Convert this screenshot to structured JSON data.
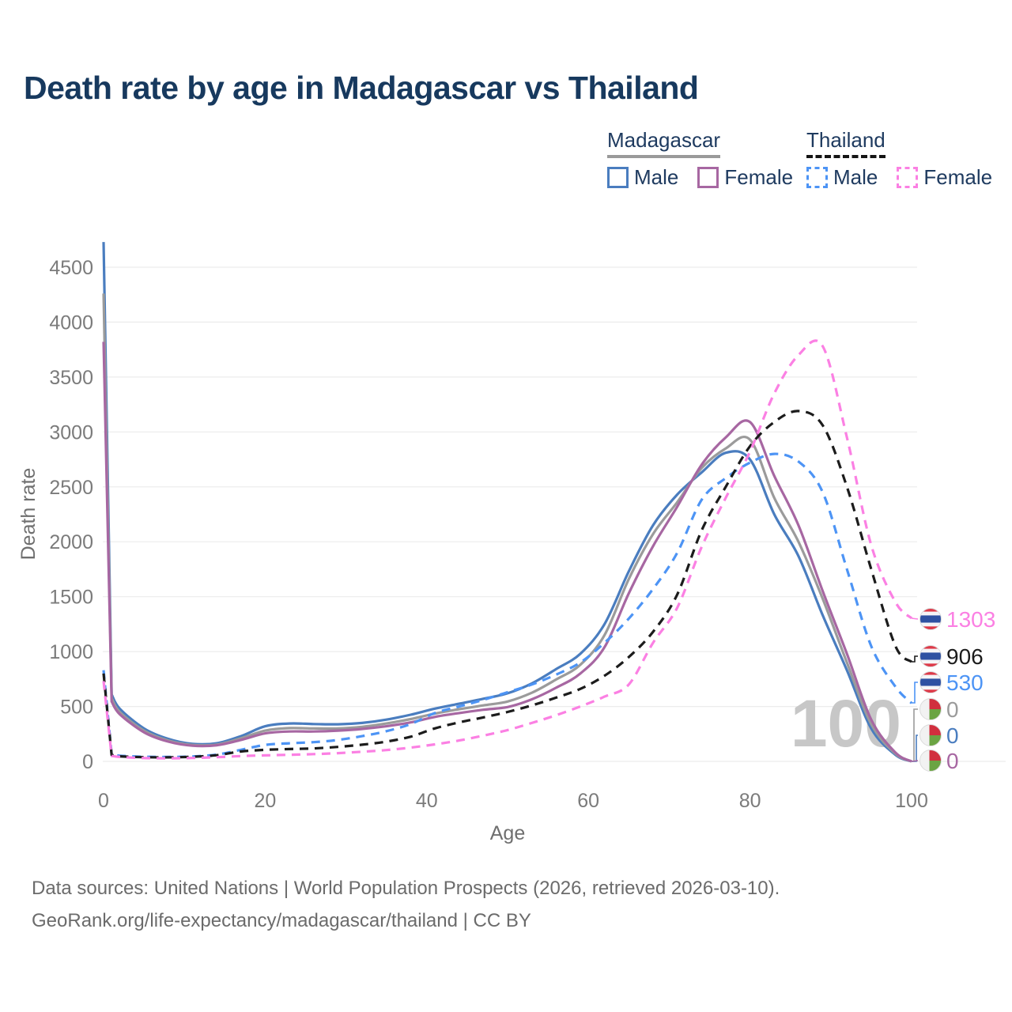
{
  "page": {
    "title": "Death rate by age in Madagascar vs Thailand",
    "watermark": "100",
    "footer_line1": "Data sources: United Nations | World Population Prospects (2026, retrieved 2026-03-10).",
    "footer_line2": "GeoRank.org/life-expectancy/madagascar/thailand | CC BY"
  },
  "legend": {
    "groups": [
      {
        "label": "Madagascar",
        "line_style": "solid",
        "underline_color": "#9a9a9a",
        "items": [
          {
            "label": "Male",
            "color": "#4a7dbf",
            "dashed": false
          },
          {
            "label": "Female",
            "color": "#a767a2",
            "dashed": false
          }
        ]
      },
      {
        "label": "Thailand",
        "line_style": "dashed",
        "underline_color": "#141414",
        "items": [
          {
            "label": "Male",
            "color": "#4d94f5",
            "dashed": true
          },
          {
            "label": "Female",
            "color": "#fb80e3",
            "dashed": true
          }
        ]
      }
    ]
  },
  "chart_data": {
    "type": "line",
    "title": "Death rate by age in Madagascar vs Thailand",
    "xlabel": "Age",
    "ylabel": "Death rate",
    "xlim": [
      0,
      100
    ],
    "ylim": [
      0,
      4500
    ],
    "x_ticks": [
      0,
      20,
      40,
      60,
      80,
      100
    ],
    "y_ticks": [
      0,
      500,
      1000,
      1500,
      2000,
      2500,
      3000,
      3500,
      4000,
      4500
    ],
    "grid": true,
    "legend_position": "top-right",
    "ages": [
      0,
      1,
      2,
      5,
      8,
      11,
      14,
      17,
      20,
      23,
      26,
      29,
      32,
      35,
      38,
      41,
      44,
      47,
      50,
      53,
      56,
      59,
      62,
      65,
      68,
      71,
      74,
      77,
      80,
      83,
      86,
      89,
      92,
      95,
      98,
      100
    ],
    "series": [
      {
        "id": "madagascar-male",
        "name": "Madagascar Male",
        "country": "Madagascar",
        "color": "#4a7dbf",
        "dashed": false,
        "end_label": "0",
        "flag": "madagascar",
        "values": [
          4730,
          610,
          480,
          300,
          205,
          160,
          165,
          230,
          320,
          345,
          340,
          338,
          350,
          380,
          425,
          480,
          525,
          570,
          620,
          710,
          840,
          980,
          1250,
          1730,
          2150,
          2430,
          2630,
          2810,
          2750,
          2250,
          1870,
          1330,
          830,
          300,
          60,
          0
        ]
      },
      {
        "id": "madagascar-both",
        "name": "Madagascar Both sexes",
        "country": "Madagascar",
        "color": "#9b9b9b",
        "dashed": false,
        "end_label": "0",
        "flag": "madagascar",
        "values": [
          4260,
          575,
          450,
          280,
          190,
          150,
          153,
          210,
          280,
          303,
          300,
          300,
          315,
          345,
          385,
          435,
          475,
          510,
          545,
          625,
          745,
          880,
          1150,
          1660,
          2070,
          2360,
          2670,
          2850,
          2930,
          2400,
          2000,
          1480,
          900,
          340,
          70,
          0
        ]
      },
      {
        "id": "madagascar-female",
        "name": "Madagascar Female",
        "country": "Madagascar",
        "color": "#a767a2",
        "dashed": false,
        "end_label": "0",
        "flag": "madagascar",
        "values": [
          3820,
          545,
          430,
          265,
          180,
          143,
          147,
          195,
          255,
          272,
          272,
          280,
          295,
          320,
          355,
          405,
          440,
          470,
          495,
          565,
          670,
          800,
          1040,
          1530,
          1960,
          2320,
          2700,
          2950,
          3090,
          2600,
          2150,
          1550,
          980,
          380,
          80,
          0
        ]
      },
      {
        "id": "thailand-male",
        "name": "Thailand Male",
        "country": "Thailand",
        "color": "#4d94f5",
        "dashed": true,
        "end_label": "530",
        "flag": "thailand",
        "values": [
          830,
          65,
          52,
          42,
          40,
          45,
          62,
          105,
          150,
          165,
          175,
          195,
          230,
          275,
          340,
          440,
          500,
          560,
          630,
          700,
          790,
          900,
          1080,
          1300,
          1570,
          1900,
          2380,
          2580,
          2720,
          2800,
          2730,
          2450,
          1750,
          1050,
          680,
          530
        ]
      },
      {
        "id": "thailand-both",
        "name": "Thailand Both sexes",
        "country": "Thailand",
        "color": "#1c1c1c",
        "dashed": true,
        "end_label": "906",
        "flag": "thailand",
        "values": [
          800,
          58,
          46,
          38,
          37,
          42,
          56,
          90,
          105,
          112,
          118,
          132,
          152,
          180,
          225,
          300,
          355,
          400,
          450,
          510,
          580,
          660,
          780,
          950,
          1180,
          1520,
          2100,
          2500,
          2870,
          3090,
          3190,
          3060,
          2500,
          1750,
          1050,
          906
        ]
      },
      {
        "id": "thailand-female",
        "name": "Thailand Female",
        "country": "Thailand",
        "color": "#fb80e3",
        "dashed": true,
        "end_label": "1303",
        "flag": "thailand",
        "values": [
          730,
          50,
          40,
          30,
          28,
          31,
          38,
          48,
          55,
          60,
          66,
          75,
          88,
          103,
          125,
          155,
          190,
          235,
          285,
          350,
          420,
          500,
          590,
          700,
          1080,
          1400,
          1950,
          2400,
          2820,
          3350,
          3700,
          3780,
          2950,
          1970,
          1450,
          1303
        ]
      }
    ],
    "end_labels": [
      {
        "text": "1303",
        "series": "thailand-female",
        "color": "#fb80e3",
        "flag": "thailand"
      },
      {
        "text": "906",
        "series": "thailand-both",
        "color": "#1c1c1c",
        "flag": "thailand"
      },
      {
        "text": "530",
        "series": "thailand-male",
        "color": "#4d94f5",
        "flag": "thailand"
      },
      {
        "text": "0",
        "series": "madagascar-both",
        "color": "#9b9b9b",
        "flag": "madagascar"
      },
      {
        "text": "0",
        "series": "madagascar-male",
        "color": "#4a7dbf",
        "flag": "madagascar"
      },
      {
        "text": "0",
        "series": "madagascar-female",
        "color": "#a767a2",
        "flag": "madagascar"
      }
    ],
    "flag_colors": {
      "thailand": {
        "red": "#dd3a49",
        "white": "#f5f5f7",
        "blue": "#2e51a2"
      },
      "madagascar": {
        "white": "#f2f2f2",
        "red": "#d12f3e",
        "green": "#6ba443"
      }
    }
  }
}
